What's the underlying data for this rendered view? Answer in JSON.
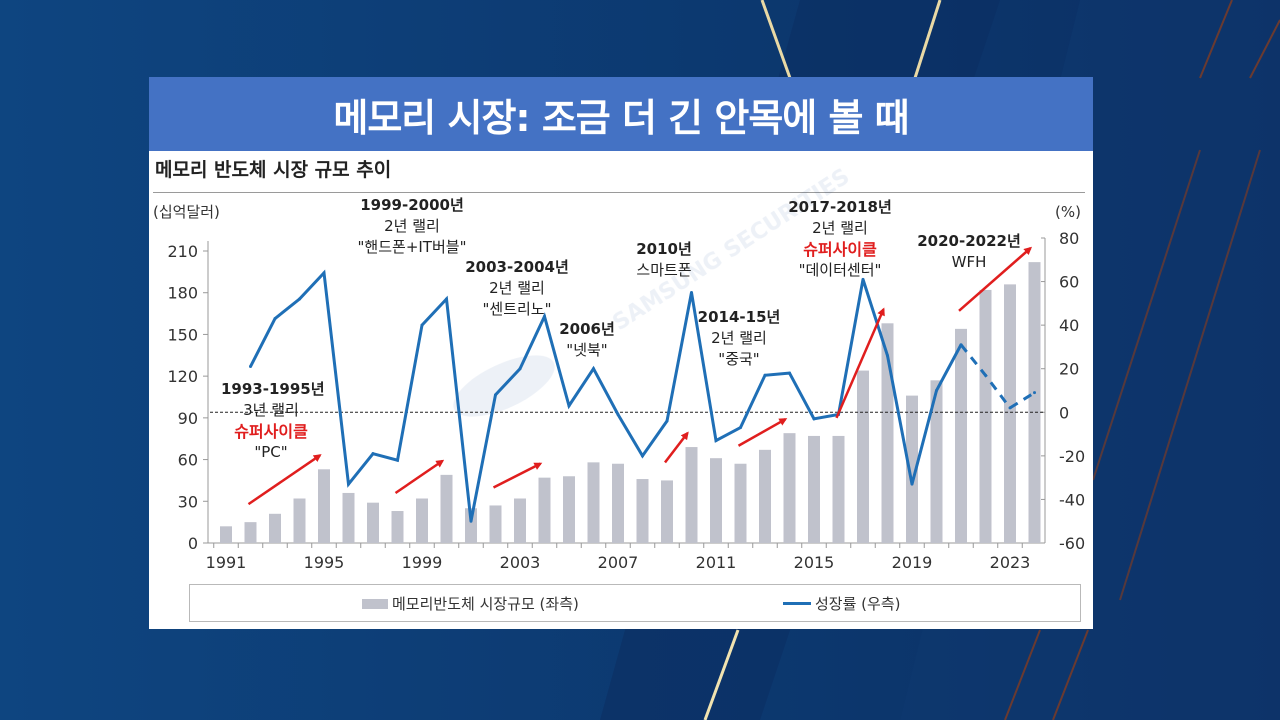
{
  "slide": {
    "title": "메모리 시장: 조금 더 긴 안목에 볼 때",
    "subtitle": "메모리 반도체 시장 규모 추이",
    "watermark": "SAMSUNG SECURITIES"
  },
  "colors": {
    "background": "#0d3a72",
    "title_bar": "#4472c4",
    "bar": "#c0c2cc",
    "line": "#1f6fb6",
    "arrow": "#e01e1e",
    "highlight_text": "#e01e1e"
  },
  "annotations": [
    {
      "period": "1993-1995년",
      "rally": "3년 랠리",
      "tag": "슈퍼사이클",
      "theme": "\"PC\""
    },
    {
      "period": "1999-2000년",
      "rally": "2년 랠리",
      "theme": "\"핸드폰+IT버블\""
    },
    {
      "period": "2003-2004년",
      "rally": "2년 랠리",
      "theme": "\"센트리노\""
    },
    {
      "period": "2006년",
      "theme": "\"넷북\""
    },
    {
      "period": "2010년",
      "theme": "스마트폰"
    },
    {
      "period": "2014-15년",
      "rally": "2년 랠리",
      "theme": "\"중국\""
    },
    {
      "period": "2017-2018년",
      "rally": "2년 랠리",
      "tag": "슈퍼사이클",
      "theme": "\"데이터센터\""
    },
    {
      "period": "2020-2022년",
      "theme": "WFH"
    }
  ],
  "chart_data": {
    "type": "bar+line",
    "title": "메모리 반도체 시장 규모 추이",
    "ylabel_left": "(십억달러)",
    "ylabel_right": "(%)",
    "x": [
      1991,
      1992,
      1993,
      1994,
      1995,
      1996,
      1997,
      1998,
      1999,
      2000,
      2001,
      2002,
      2003,
      2004,
      2005,
      2006,
      2007,
      2008,
      2009,
      2010,
      2011,
      2012,
      2013,
      2014,
      2015,
      2016,
      2017,
      2018,
      2019,
      2020,
      2021,
      2022,
      2023,
      2024
    ],
    "x_tick_labels": [
      "1991",
      "1995",
      "1999",
      "2003",
      "2007",
      "2011",
      "2015",
      "2019",
      "2023"
    ],
    "x_tick_years": [
      1991,
      1995,
      1999,
      2003,
      2007,
      2011,
      2015,
      2019,
      2023
    ],
    "ylim_left": [
      0,
      210
    ],
    "yticks_left": [
      0,
      30,
      60,
      90,
      120,
      150,
      180,
      210
    ],
    "ylim_right": [
      -60,
      80
    ],
    "yticks_right": [
      -60,
      -40,
      -20,
      0,
      20,
      40,
      60,
      80
    ],
    "zero_reference_line": "dashed at 0% (right axis)",
    "series": [
      {
        "name": "메모리반도체 시장규모 (좌측)",
        "type": "bar",
        "axis": "left",
        "values": [
          12,
          15,
          21,
          32,
          53,
          36,
          29,
          23,
          32,
          49,
          25,
          27,
          32,
          47,
          48,
          58,
          57,
          46,
          45,
          69,
          61,
          57,
          67,
          79,
          77,
          77,
          124,
          158,
          106,
          117,
          154,
          182,
          186,
          202
        ]
      },
      {
        "name": "성장률 (우측)",
        "type": "line",
        "axis": "right",
        "values": [
          null,
          21,
          43,
          52,
          64,
          -33,
          -19,
          -22,
          40,
          52,
          -50,
          8,
          20,
          44,
          3,
          20,
          -1,
          -20,
          -4,
          55,
          -13,
          -7,
          17,
          18,
          -3,
          -1,
          61,
          26,
          -33,
          10,
          31,
          17,
          2,
          9
        ],
        "dashed_from": 2021
      }
    ],
    "rally_arrows": [
      [
        1992,
        1995
      ],
      [
        1998,
        2000
      ],
      [
        2002,
        2004
      ],
      [
        2009,
        2010
      ],
      [
        2012,
        2014
      ],
      [
        2016,
        2018
      ],
      [
        2021,
        2024
      ]
    ],
    "legend": [
      "메모리반도체 시장규모 (좌측)",
      "성장률 (우측)"
    ],
    "legend_position": "bottom"
  }
}
